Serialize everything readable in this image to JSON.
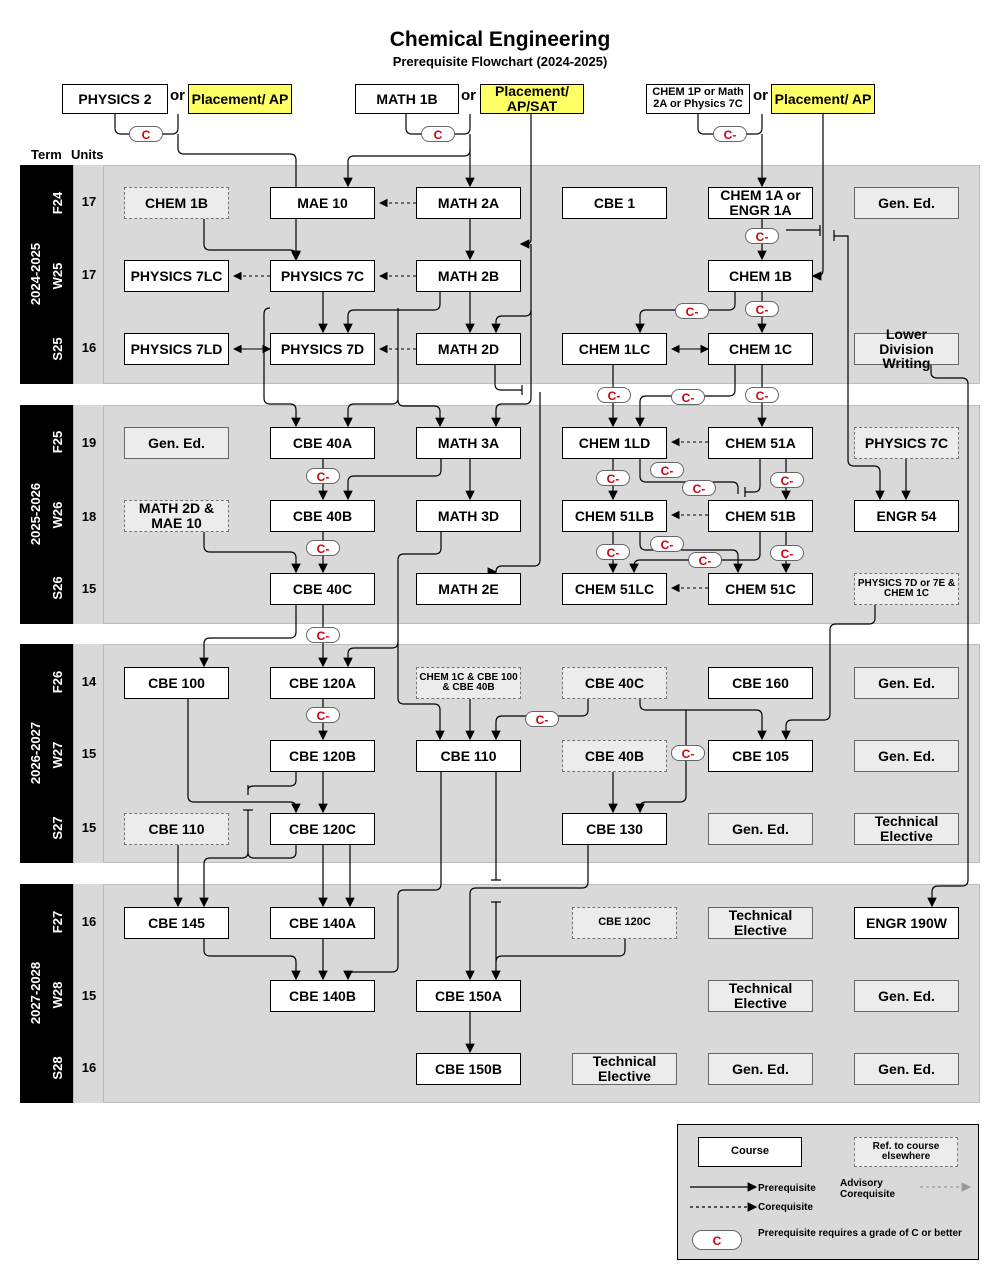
{
  "title": "Chemical Engineering",
  "subtitle": "Prerequisite Flowchart (2024-2025)",
  "headers": {
    "term": "Term",
    "units": "Units"
  },
  "placement": {
    "or": "or",
    "physics2": "PHYSICS 2",
    "placement_ap_1": "Placement/ AP",
    "math1b": "MATH 1B",
    "placement_ap_sat": "Placement/ AP/SAT",
    "chem1p": "CHEM 1P or Math 2A or Physics 7C",
    "placement_ap_2": "Placement/ AP"
  },
  "years": [
    "2024-2025",
    "2025-2026",
    "2026-2027",
    "2027-2028"
  ],
  "terms": [
    "F24",
    "W25",
    "S25",
    "F25",
    "W26",
    "S26",
    "F26",
    "W27",
    "S27",
    "F27",
    "W28",
    "S28"
  ],
  "units": [
    "17",
    "17",
    "16",
    "19",
    "18",
    "15",
    "14",
    "15",
    "15",
    "16",
    "15",
    "16"
  ],
  "courses": {
    "f24": [
      "CHEM 1B",
      "MAE 10",
      "MATH 2A",
      "CBE 1",
      "CHEM 1A or ENGR 1A",
      "Gen. Ed."
    ],
    "w25": [
      "PHYSICS 7LC",
      "PHYSICS 7C",
      "MATH 2B",
      "CHEM 1B"
    ],
    "s25": [
      "PHYSICS 7LD",
      "PHYSICS 7D",
      "MATH 2D",
      "CHEM 1LC",
      "CHEM 1C",
      "Lower Division Writing"
    ],
    "f25": [
      "Gen. Ed.",
      "CBE 40A",
      "MATH 3A",
      "CHEM 1LD",
      "CHEM 51A",
      "PHYSICS 7C"
    ],
    "w26": [
      "MATH 2D & MAE 10",
      "CBE 40B",
      "MATH 3D",
      "CHEM 51LB",
      "CHEM 51B",
      "ENGR 54"
    ],
    "s26": [
      "CBE 40C",
      "MATH 2E",
      "CHEM 51LC",
      "CHEM 51C",
      "PHYSICS 7D or 7E & CHEM 1C"
    ],
    "f26": [
      "CBE 100",
      "CBE 120A",
      "CHEM 1C & CBE 100 & CBE 40B",
      "CBE 40C",
      "CBE 160",
      "Gen. Ed."
    ],
    "w27": [
      "CBE 120B",
      "CBE 110",
      "CBE 40B",
      "CBE 105",
      "Gen. Ed."
    ],
    "s27": [
      "CBE 110",
      "CBE 120C",
      "CBE 130",
      "Gen. Ed.",
      "Technical Elective"
    ],
    "f27": [
      "CBE 145",
      "CBE 140A",
      "CBE 120C",
      "Technical Elective",
      "ENGR 190W"
    ],
    "w28": [
      "CBE 140B",
      "CBE 150A",
      "Technical Elective",
      "Gen. Ed."
    ],
    "s28": [
      "CBE 150B",
      "Technical Elective",
      "Gen. Ed.",
      "Gen. Ed."
    ]
  },
  "grade_badges": {
    "c": "C",
    "c_minus": "C-"
  },
  "legend": {
    "course": "Course",
    "ref": "Ref. to course elsewhere",
    "prerequisite": "Prerequisite",
    "corequisite": "Corequisite",
    "advisory": "Advisory Corequisite",
    "grade_c": "C",
    "grade_text": "Prerequisite requires a grade of C or better"
  }
}
